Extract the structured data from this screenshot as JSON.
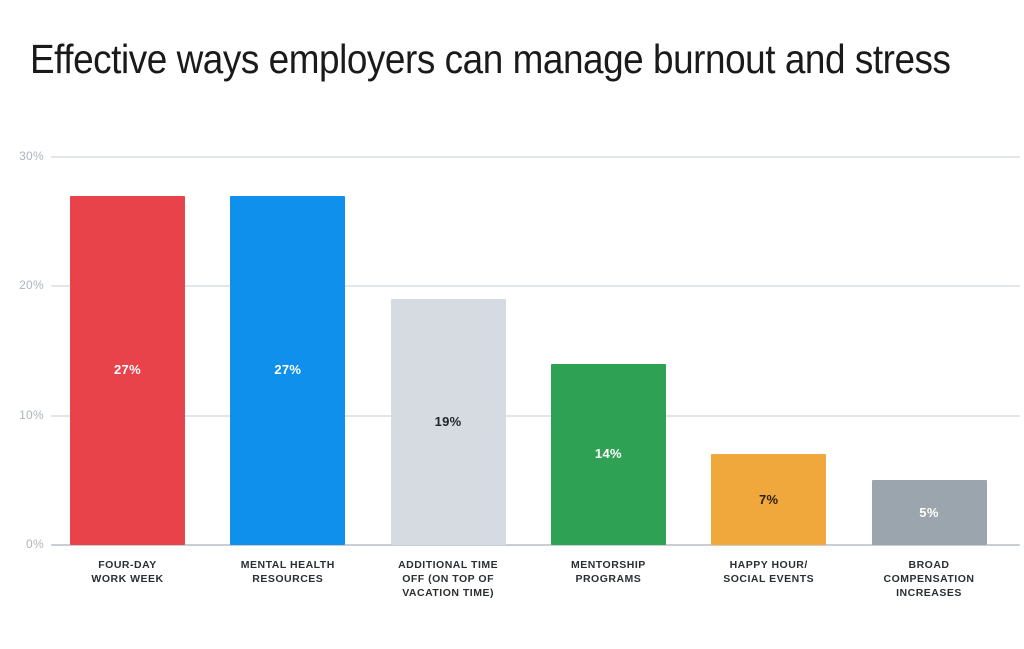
{
  "page": {
    "background": "#ffffff"
  },
  "colors": {
    "title_text": "#1a1a1a",
    "gridline": "#e2e6ea",
    "axis_line": "#c8ced4",
    "y_tick_label": "#aeb5bb",
    "category_label": "#2b2f33"
  },
  "chart_data": {
    "type": "bar",
    "title": "Effective ways employers can manage burnout and stress",
    "xlabel": "",
    "ylabel": "",
    "ylim": [
      0,
      30
    ],
    "grid": true,
    "legend": "none",
    "y_ticks": [
      {
        "label": "30%",
        "value": 30
      },
      {
        "label": "20%",
        "value": 20
      },
      {
        "label": "10%",
        "value": 10
      },
      {
        "label": "0%",
        "value": 0
      }
    ],
    "categories": [
      [
        "FOUR-DAY",
        "WORK WEEK"
      ],
      [
        "MENTAL HEALTH",
        "RESOURCES"
      ],
      [
        "ADDITIONAL TIME",
        "OFF (ON TOP OF",
        "VACATION TIME)"
      ],
      [
        "MENTORSHIP",
        "PROGRAMS"
      ],
      [
        "HAPPY HOUR/",
        "SOCIAL EVENTS"
      ],
      [
        "BROAD",
        "COMPENSATION",
        "INCREASES"
      ]
    ],
    "values": [
      27,
      27,
      19,
      14,
      7,
      5
    ],
    "value_labels": [
      "27%",
      "27%",
      "19%",
      "14%",
      "7%",
      "5%"
    ],
    "bar_colors": [
      "#e8434a",
      "#0f90ec",
      "#d5dbe1",
      "#2fa155",
      "#f0a73c",
      "#9aa5ae"
    ],
    "value_label_colors": [
      "#ffffff",
      "#ffffff",
      "#20262c",
      "#ffffff",
      "#2b2115",
      "#ffffff"
    ]
  }
}
